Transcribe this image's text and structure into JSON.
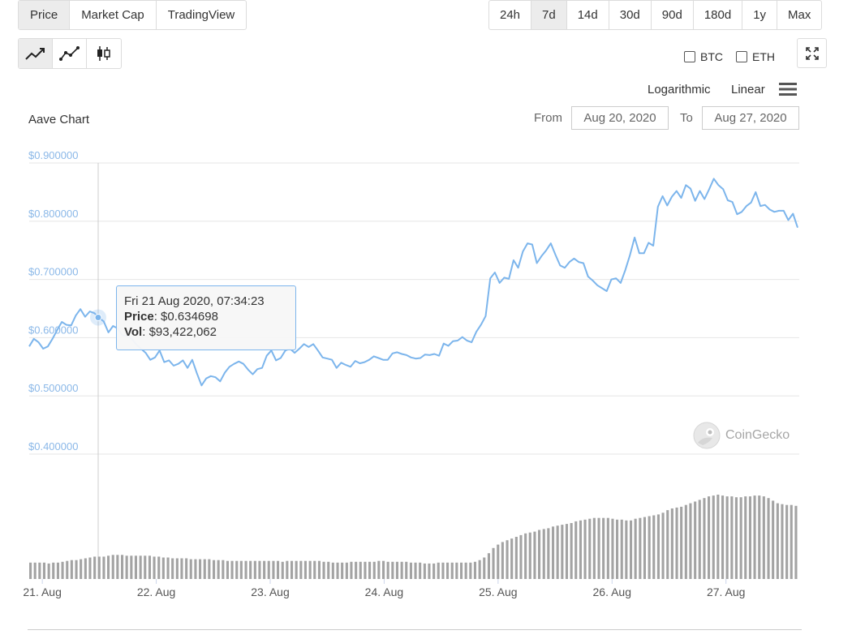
{
  "tabs": [
    "Price",
    "Market Cap",
    "TradingView"
  ],
  "active_tab": "Price",
  "ranges": [
    "24h",
    "7d",
    "14d",
    "30d",
    "90d",
    "180d",
    "1y",
    "Max"
  ],
  "active_range": "7d",
  "chart_types": [
    "line-chart-icon",
    "point-line-chart-icon",
    "candlestick-icon"
  ],
  "compare": {
    "btc": "BTC",
    "eth": "ETH"
  },
  "scale": {
    "log": "Logarithmic",
    "linear": "Linear"
  },
  "range": {
    "from_label": "From",
    "from": "Aug 20, 2020",
    "to_label": "To",
    "to": "Aug 27, 2020"
  },
  "tooltip": {
    "date": "Fri 21 Aug 2020, 07:34:23",
    "price_label": "Price",
    "price": "$0.634698",
    "vol_label": "Vol",
    "vol": "$93,422,062"
  },
  "watermark": "CoinGecko",
  "colors": {
    "line": "#7cb5ec",
    "volume": "#a3a3a3",
    "accent": "#8bb8e8"
  },
  "chart_data": {
    "type": "line",
    "title": "Aave Chart",
    "y_ticks": [
      "$0.400000",
      "$0.500000",
      "$0.600000",
      "$0.700000",
      "$0.800000",
      "$0.900000"
    ],
    "ylim": [
      0.4,
      0.9
    ],
    "x_ticks": [
      "21. Aug",
      "22. Aug",
      "23. Aug",
      "24. Aug",
      "25. Aug",
      "26. Aug",
      "27. Aug"
    ],
    "x_tick_days": [
      1,
      2,
      3,
      4,
      5,
      6,
      7
    ],
    "x_range_days": [
      0.885,
      7.643
    ],
    "series": [
      {
        "values": [
          0.585,
          0.598,
          0.592,
          0.581,
          0.585,
          0.598,
          0.613,
          0.627,
          0.622,
          0.621,
          0.638,
          0.649,
          0.636,
          0.645,
          0.642,
          0.634,
          0.628,
          0.609,
          0.62,
          0.616,
          0.604,
          0.603,
          0.598,
          0.588,
          0.581,
          0.574,
          0.562,
          0.566,
          0.578,
          0.558,
          0.561,
          0.552,
          0.555,
          0.561,
          0.548,
          0.562,
          0.539,
          0.518,
          0.53,
          0.534,
          0.532,
          0.525,
          0.54,
          0.55,
          0.555,
          0.559,
          0.555,
          0.545,
          0.537,
          0.546,
          0.548,
          0.569,
          0.578,
          0.561,
          0.565,
          0.578,
          0.581,
          0.574,
          0.581,
          0.589,
          0.584,
          0.589,
          0.578,
          0.566,
          0.564,
          0.562,
          0.548,
          0.557,
          0.553,
          0.55,
          0.56,
          0.556,
          0.558,
          0.562,
          0.568,
          0.565,
          0.562,
          0.562,
          0.573,
          0.575,
          0.572,
          0.57,
          0.566,
          0.564,
          0.565,
          0.571,
          0.57,
          0.572,
          0.569,
          0.59,
          0.586,
          0.594,
          0.595,
          0.601,
          0.595,
          0.592,
          0.61,
          0.622,
          0.637,
          0.702,
          0.712,
          0.694,
          0.703,
          0.701,
          0.733,
          0.72,
          0.748,
          0.762,
          0.76,
          0.728,
          0.74,
          0.75,
          0.762,
          0.742,
          0.724,
          0.72,
          0.73,
          0.736,
          0.73,
          0.728,
          0.705,
          0.698,
          0.69,
          0.685,
          0.68,
          0.7,
          0.702,
          0.694,
          0.716,
          0.742,
          0.772,
          0.745,
          0.745,
          0.763,
          0.758,
          0.825,
          0.843,
          0.827,
          0.842,
          0.852,
          0.84,
          0.862,
          0.856,
          0.835,
          0.852,
          0.838,
          0.855,
          0.873,
          0.862,
          0.855,
          0.836,
          0.833,
          0.812,
          0.816,
          0.826,
          0.832,
          0.85,
          0.826,
          0.828,
          0.82,
          0.816,
          0.818,
          0.818,
          0.802,
          0.813,
          0.789
        ]
      }
    ],
    "volume": [
      19,
      19,
      19,
      19,
      18,
      19,
      19,
      20,
      21,
      22,
      22,
      23,
      24,
      25,
      26,
      26,
      26,
      27,
      28,
      28,
      28,
      27,
      27,
      27,
      27,
      27,
      27,
      26,
      26,
      25,
      25,
      24,
      24,
      24,
      24,
      23,
      23,
      23,
      23,
      23,
      22,
      22,
      22,
      21,
      21,
      21,
      21,
      21,
      21,
      21,
      21,
      21,
      21,
      21,
      21,
      20,
      21,
      21,
      21,
      21,
      21,
      21,
      21,
      21,
      20,
      20,
      19,
      19,
      19,
      19,
      20,
      20,
      20,
      20,
      20,
      20,
      21,
      21,
      20,
      20,
      20,
      20,
      20,
      19,
      19,
      19,
      18,
      18,
      18,
      19,
      19,
      19,
      19,
      19,
      19,
      19,
      19,
      20,
      22,
      25,
      30,
      36,
      40,
      43,
      45,
      47,
      49,
      51,
      53,
      54,
      55,
      57,
      58,
      59,
      61,
      62,
      63,
      64,
      65,
      67,
      68,
      69,
      70,
      71,
      71,
      71,
      71,
      70,
      69,
      69,
      68,
      68,
      70,
      71,
      72,
      73,
      74,
      75,
      77,
      80,
      82,
      83,
      84,
      86,
      88,
      90,
      92,
      94,
      96,
      97,
      98,
      97,
      96,
      96,
      95,
      95,
      96,
      96,
      97,
      97,
      96,
      94,
      91,
      88,
      87,
      86,
      86,
      85
    ]
  }
}
